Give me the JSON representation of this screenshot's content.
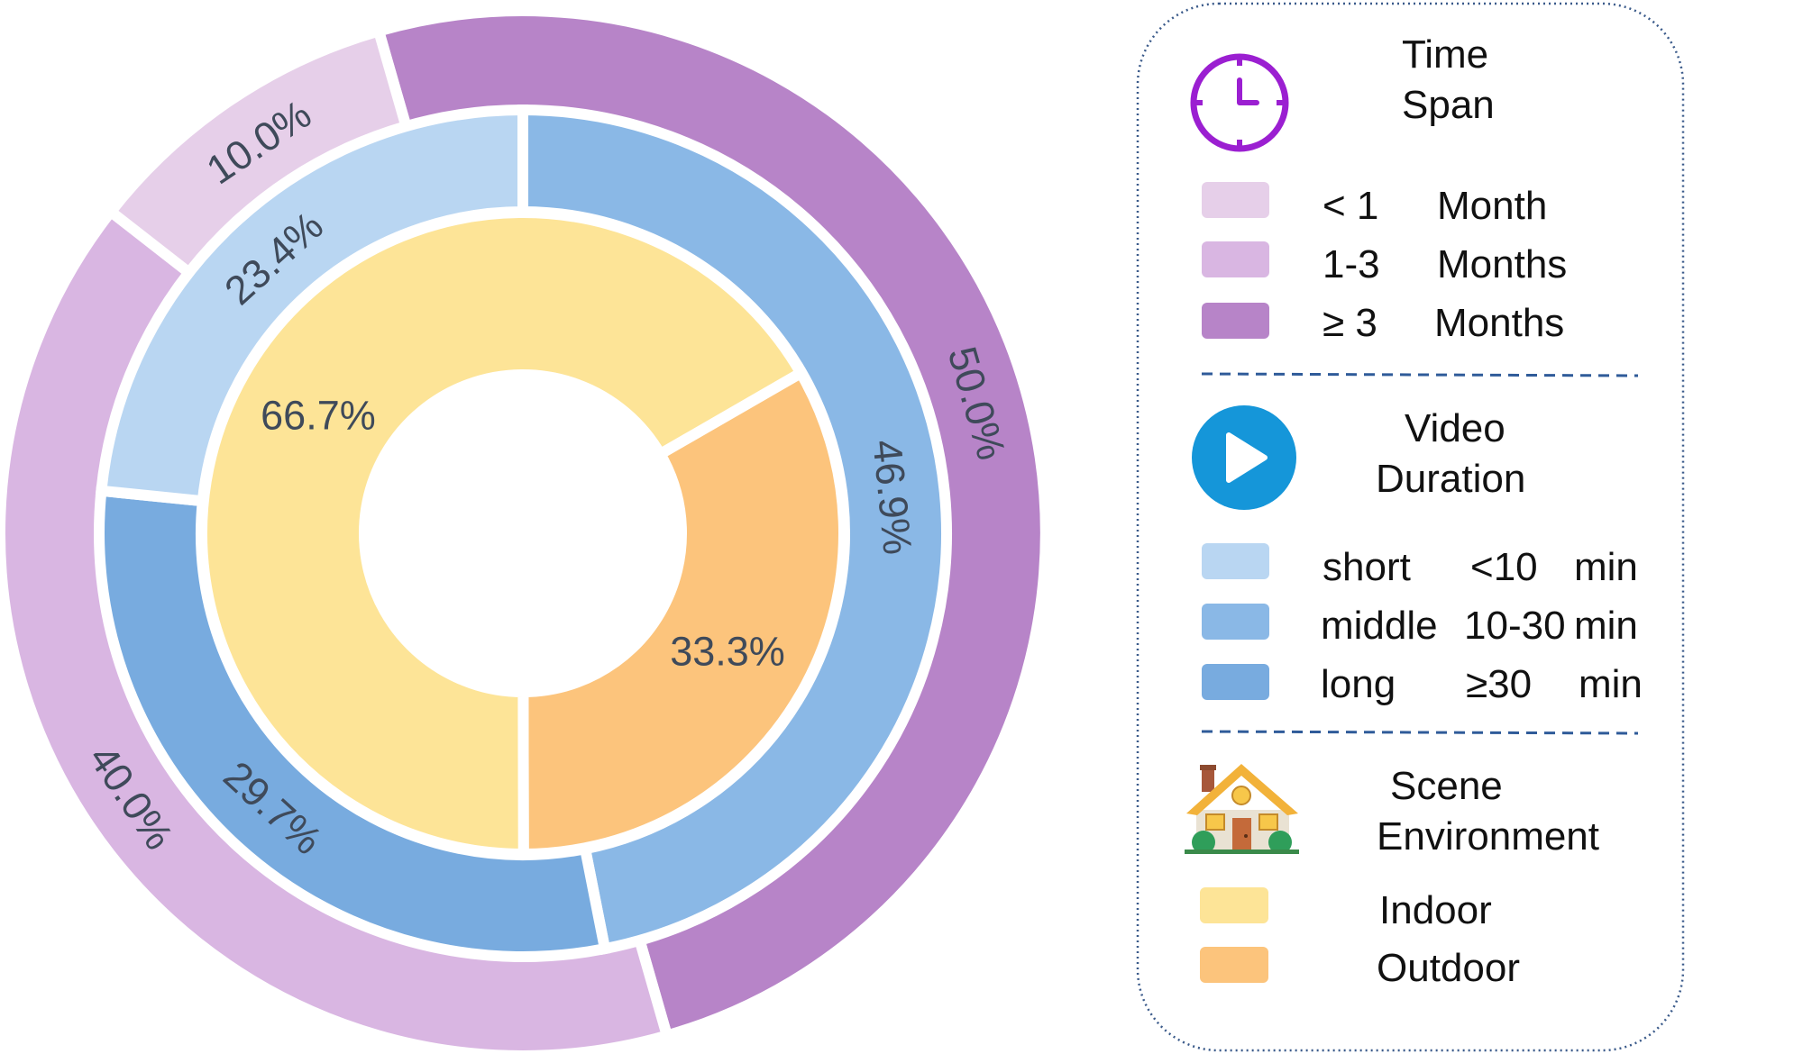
{
  "chart_data": {
    "type": "pie",
    "rings": [
      {
        "name": "Time Span",
        "categories": [
          "≥ 3 Months",
          "1-3 Months",
          "< 1 Month"
        ],
        "values": [
          50.0,
          40.0,
          10.0
        ],
        "labels": [
          "50.0%",
          "40.0%",
          "10.0%"
        ],
        "colors": [
          "#b784c8",
          "#d9b6e2",
          "#e6cfe9"
        ]
      },
      {
        "name": "Video Duration",
        "categories": [
          "middle 10-30 min",
          "long ≥30 min",
          "short <10 min"
        ],
        "values": [
          46.9,
          29.7,
          23.4
        ],
        "labels": [
          "46.9%",
          "29.7%",
          "23.4%"
        ],
        "colors": [
          "#8ab8e6",
          "#78abdf",
          "#b9d6f2"
        ]
      },
      {
        "name": "Scene Environment",
        "categories": [
          "Outdoor",
          "Indoor"
        ],
        "values": [
          33.3,
          66.7
        ],
        "labels": [
          "33.3%",
          "66.7%"
        ],
        "colors": [
          "#fcc47c",
          "#fde497"
        ]
      }
    ]
  },
  "legend": {
    "sections": [
      {
        "title_line1": "Time",
        "title_line2": "Span",
        "icon": "clock-icon",
        "icon_color": "#9b1fd1",
        "items": [
          {
            "c1": "< 1",
            "c2": "Month",
            "color": "#e6cfe9"
          },
          {
            "c1": "1-3",
            "c2": "Months",
            "color": "#d9b6e2"
          },
          {
            "c1": "≥ 3",
            "c2": "Months",
            "color": "#b784c8"
          }
        ]
      },
      {
        "title_line1": "Video",
        "title_line2": "Duration",
        "icon": "play-icon",
        "icon_color": "#1596d9",
        "items": [
          {
            "c1": "short",
            "c2": "<10",
            "c3": "min",
            "color": "#b9d6f2"
          },
          {
            "c1": "middle",
            "c2": "10-30",
            "c3": "min",
            "color": "#8ab8e6"
          },
          {
            "c1": "long",
            "c2": "≥30",
            "c3": "min",
            "color": "#78abdf"
          }
        ]
      },
      {
        "title_line1": "Scene",
        "title_line2": "Environment",
        "icon": "house-icon",
        "items": [
          {
            "c1": "Indoor",
            "color": "#fde497"
          },
          {
            "c1": "Outdoor",
            "color": "#fcc47c"
          }
        ]
      }
    ],
    "border_color": "#3a5a8a",
    "divider_color": "#2f5b99"
  }
}
